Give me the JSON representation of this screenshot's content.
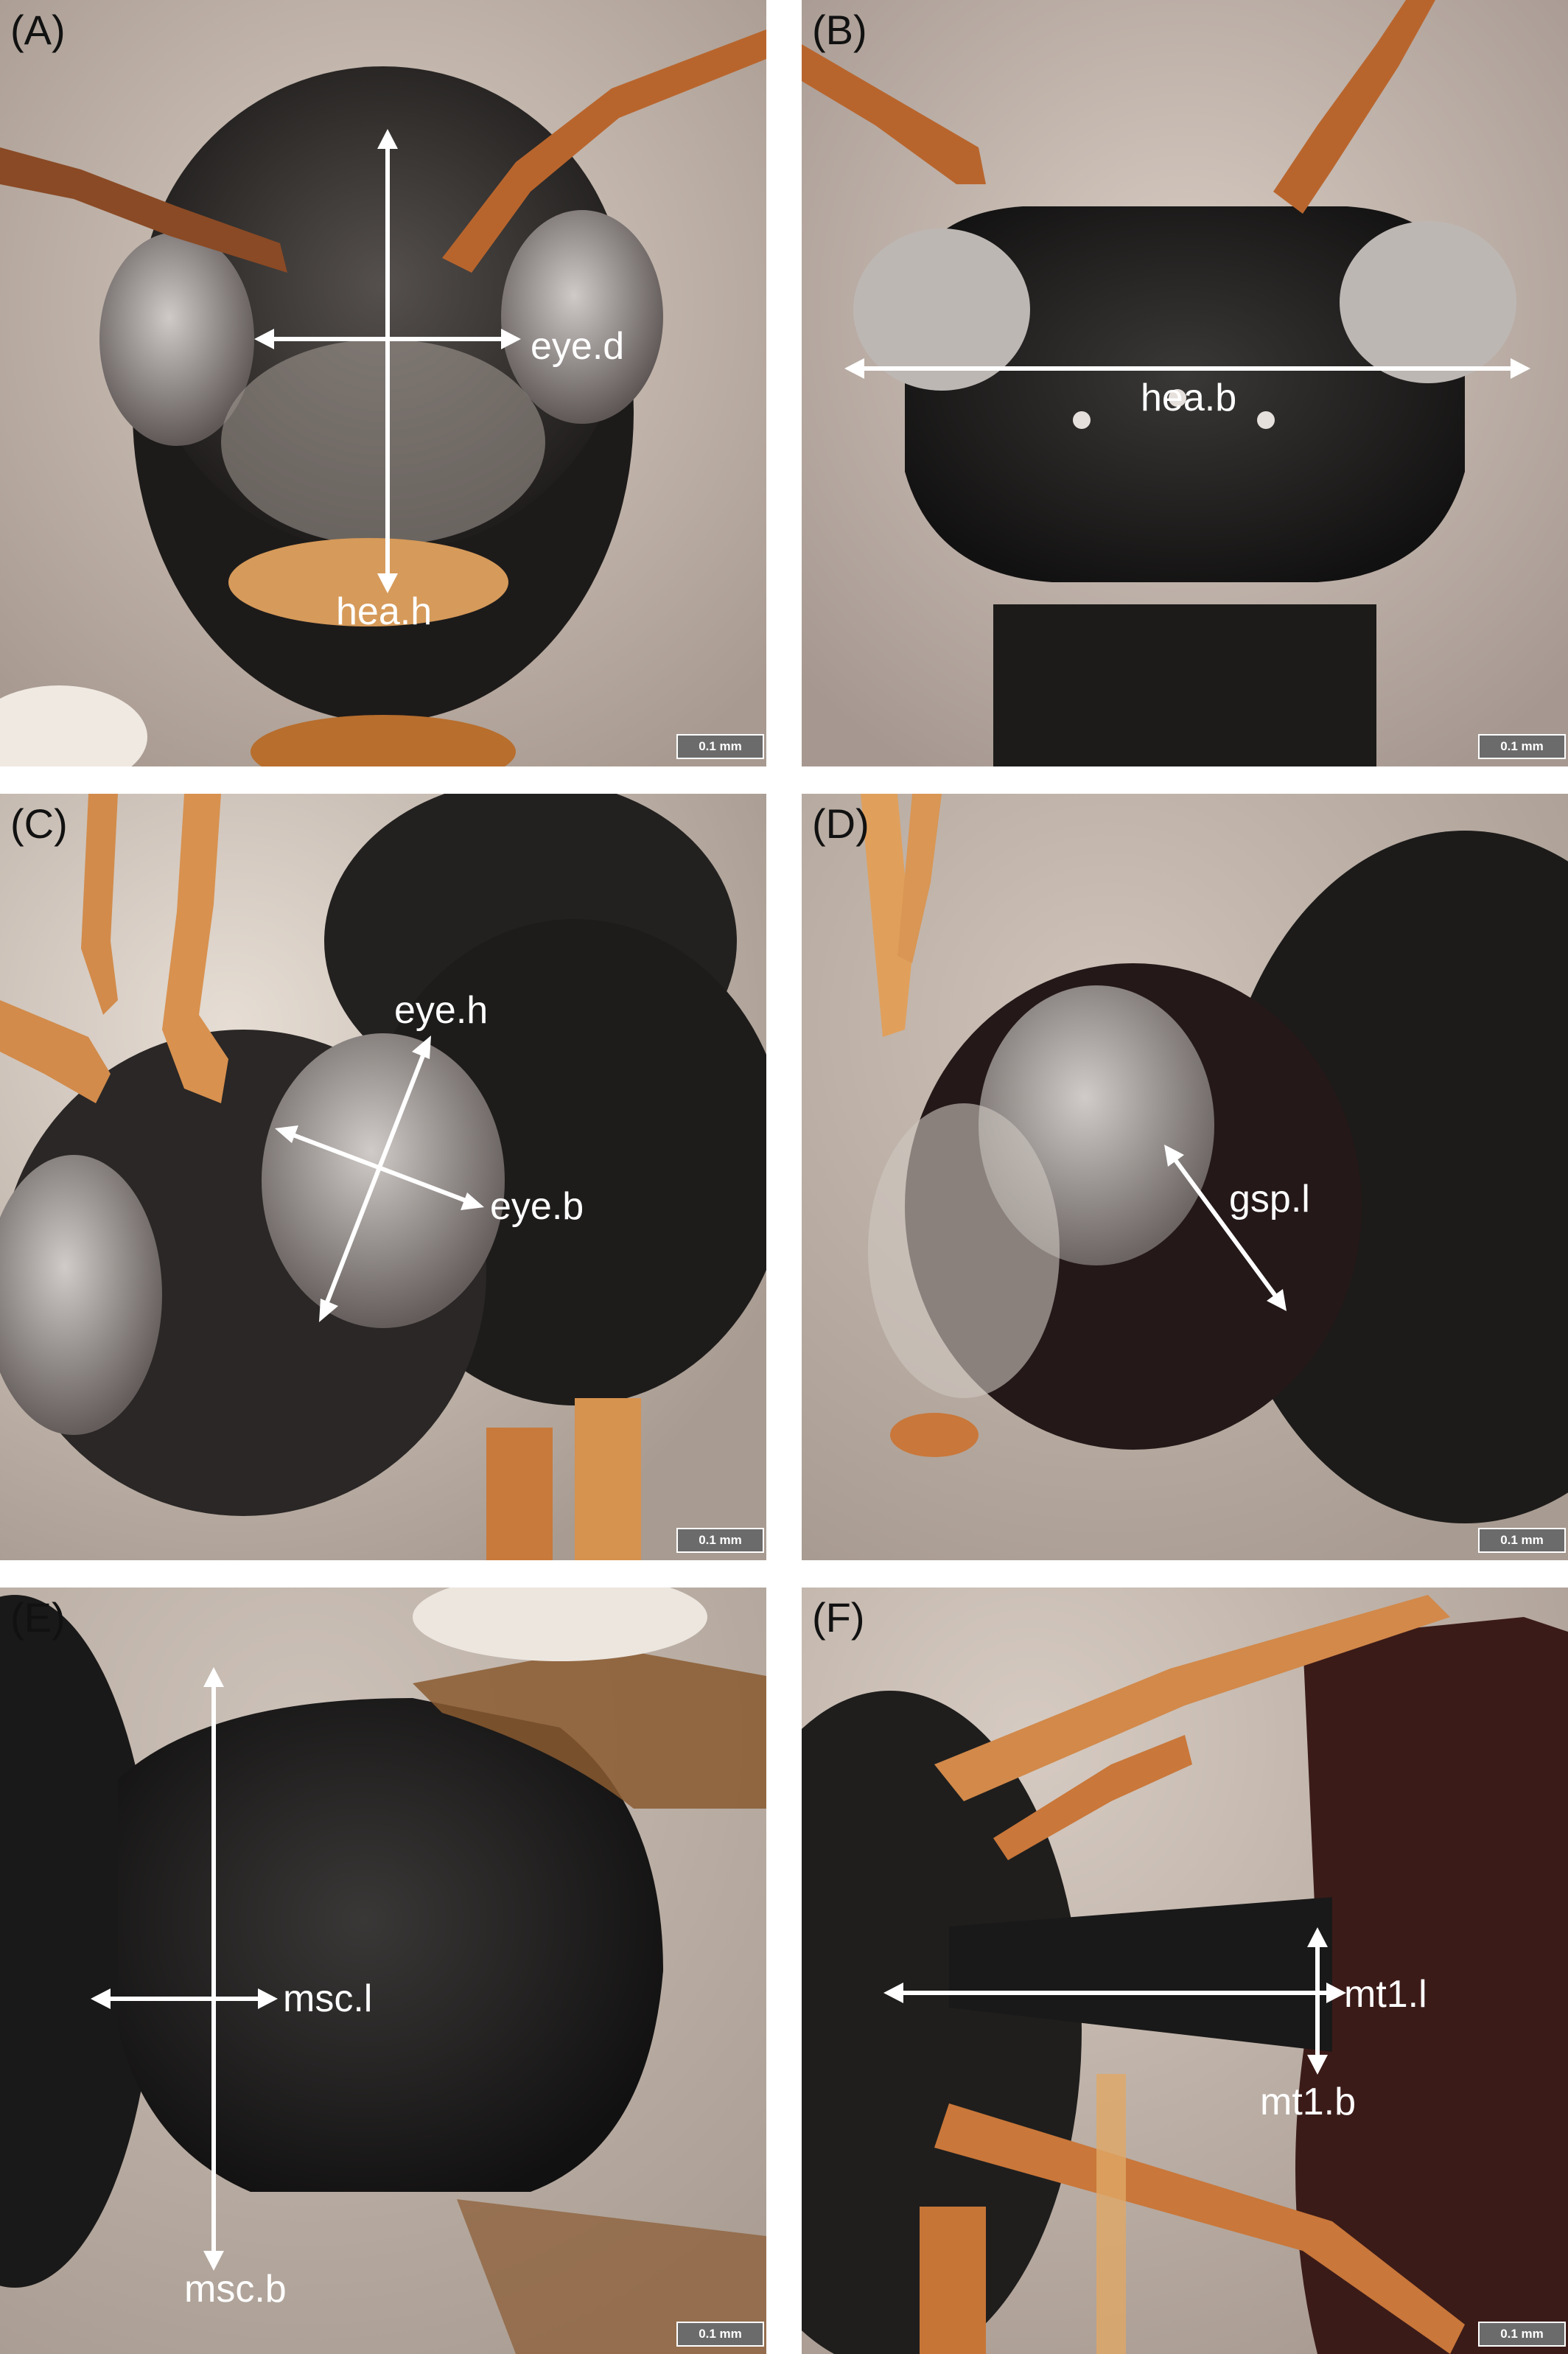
{
  "panels": [
    {
      "letter": "(A)",
      "labels": [
        "eye.d",
        "hea.h"
      ],
      "scale": "0.1 mm"
    },
    {
      "letter": "(B)",
      "labels": [
        "hea.b"
      ],
      "scale": "0.1 mm"
    },
    {
      "letter": "(C)",
      "labels": [
        "eye.h",
        "eye.b"
      ],
      "scale": "0.1 mm"
    },
    {
      "letter": "(D)",
      "labels": [
        "gsp.l"
      ],
      "scale": "0.1 mm"
    },
    {
      "letter": "(E)",
      "labels": [
        "msc.l",
        "msc.b"
      ],
      "scale": "0.1 mm"
    },
    {
      "letter": "(F)",
      "labels": [
        "mt1.l",
        "mt1.b"
      ],
      "scale": "0.1 mm"
    }
  ],
  "colors": {
    "background": "#c9bdb3",
    "specimen": "#1c1b1b",
    "antenna": "#b8652d",
    "arrow": "#ffffff"
  }
}
